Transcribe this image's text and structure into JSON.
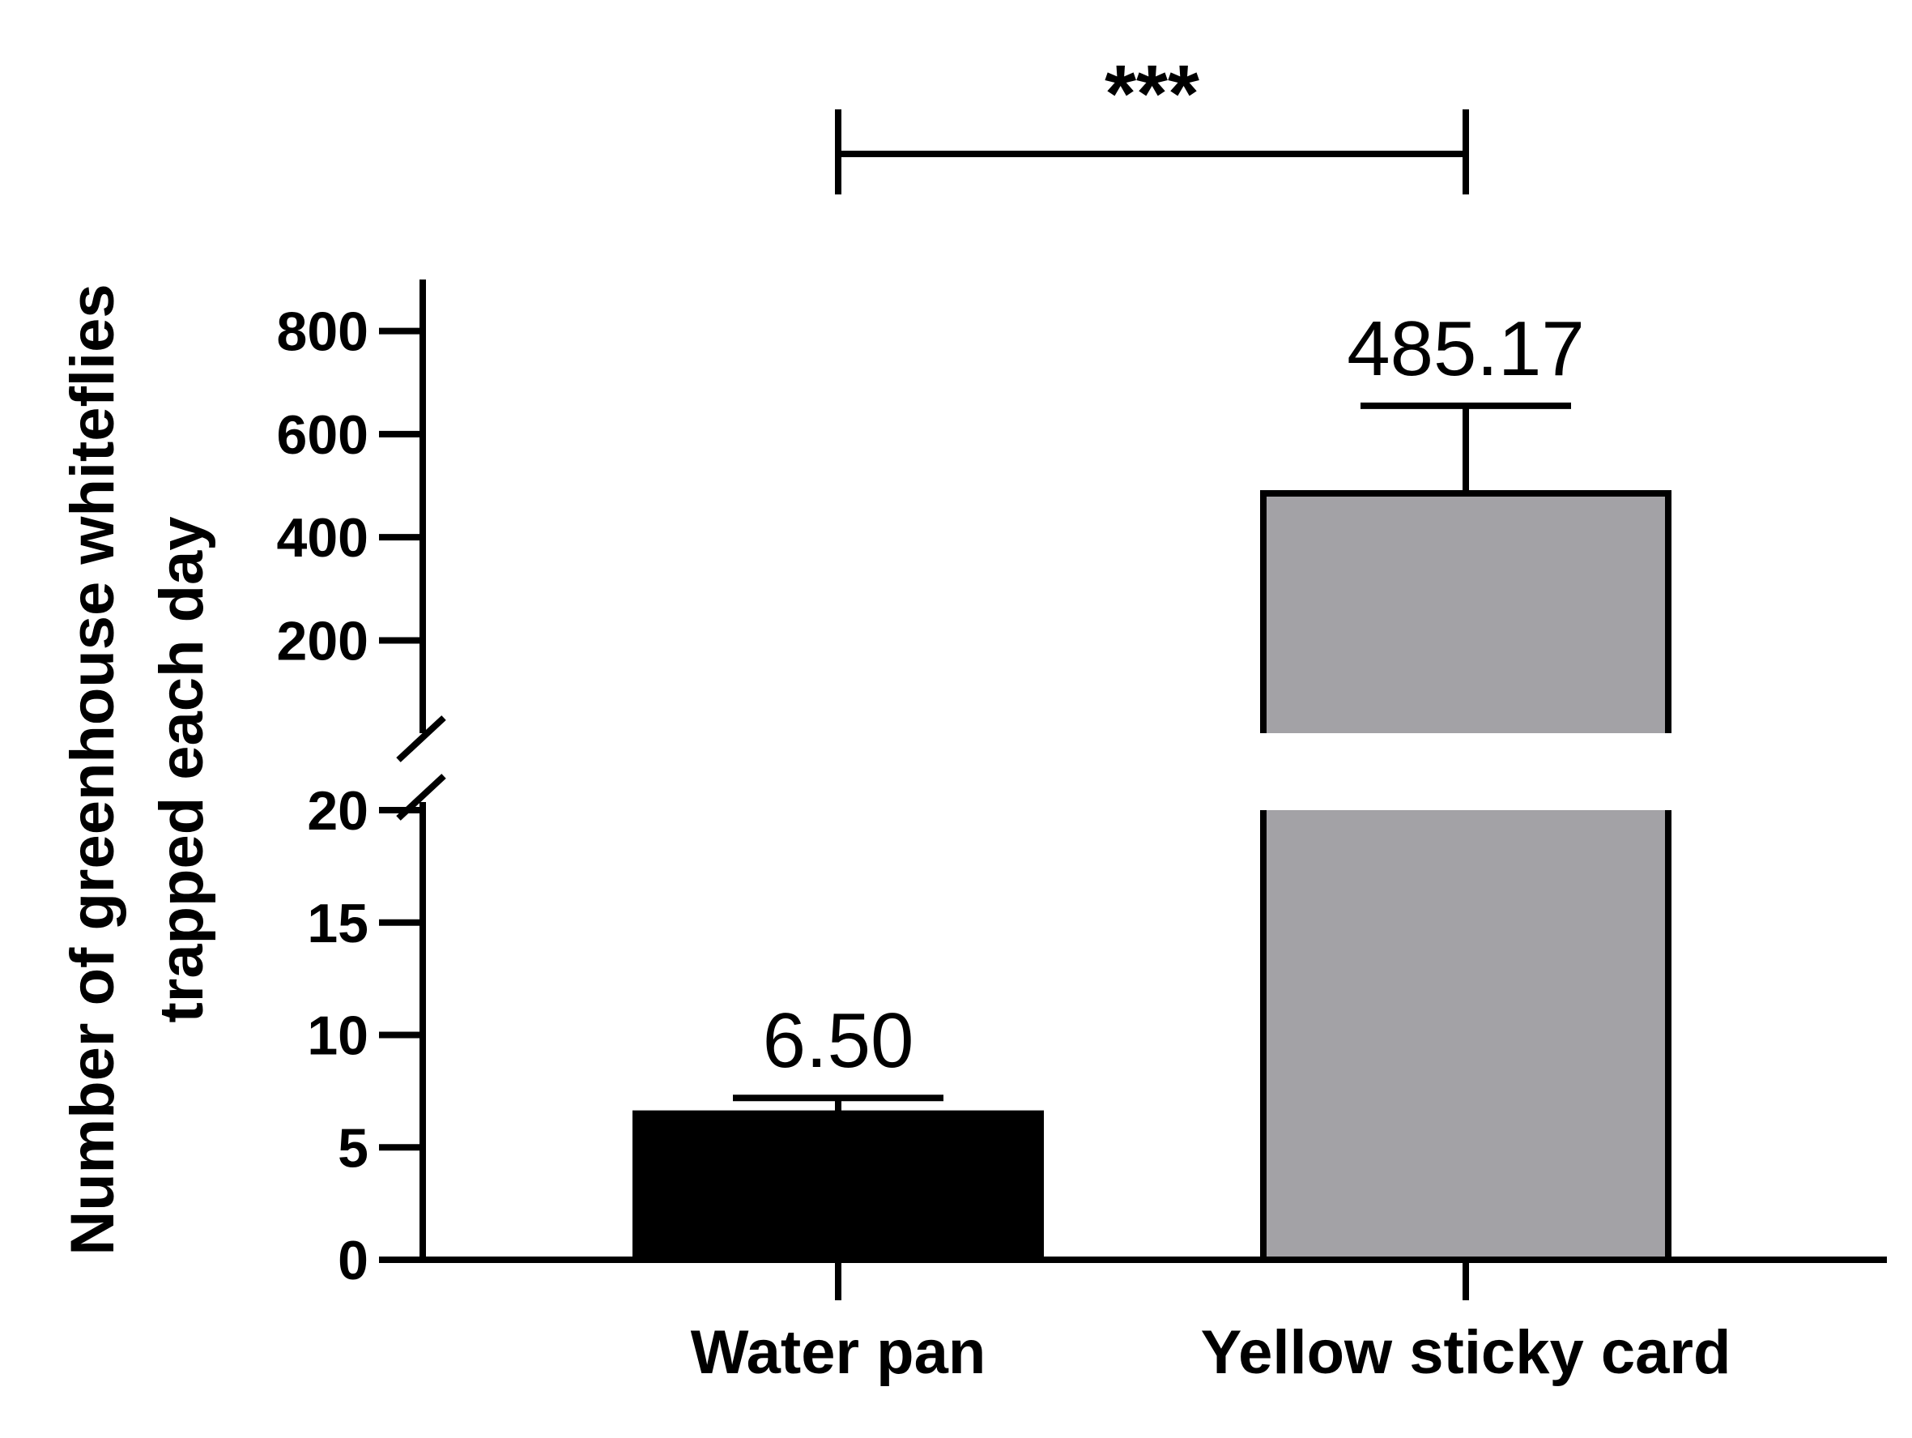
{
  "chart_data": {
    "type": "bar",
    "categories": [
      "Water pan",
      "Yellow sticky card"
    ],
    "values": [
      6.5,
      485.17
    ],
    "error_upper": [
      7.2,
      655
    ],
    "value_labels": [
      "6.50",
      "485.17"
    ],
    "colors": [
      "#000000",
      "#a3a2a6"
    ],
    "ylabel_lines": [
      "Number of greenhouse whiteflies",
      "trapped each day"
    ],
    "xlabel": "",
    "title": "",
    "axis_break": true,
    "y_lower": {
      "range": [
        0,
        20
      ],
      "ticks": [
        0,
        5,
        10,
        15,
        20
      ]
    },
    "y_upper": {
      "range": [
        20,
        900
      ],
      "ticks": [
        200,
        400,
        600,
        800
      ]
    },
    "significance": {
      "between": [
        "Water pan",
        "Yellow sticky card"
      ],
      "label": "***"
    },
    "grid": false,
    "legend": "none"
  }
}
